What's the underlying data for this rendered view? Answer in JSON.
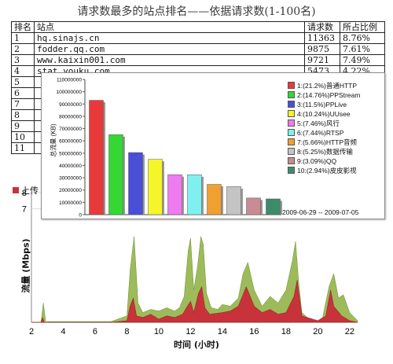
{
  "title": "请求数最多的站点排名——依据请求数(1-100名)",
  "table": {
    "headers": [
      "排名",
      "站点",
      "请求数",
      "所占比例"
    ],
    "rows": [
      [
        "1",
        "hq.sinajs.cn",
        "11363",
        "8.76%"
      ],
      [
        "2",
        "fodder.qq.com",
        "9875",
        "7.61%"
      ],
      [
        "3",
        "www.kaixin001.com",
        "9721",
        "7.49%"
      ],
      [
        "4",
        "stat.youku.com",
        "5473",
        "4.22%"
      ],
      [
        "5",
        "",
        "",
        ""
      ],
      [
        "6",
        "",
        "",
        ""
      ],
      [
        "7",
        "",
        "",
        ""
      ],
      [
        "8",
        "",
        "",
        ""
      ],
      [
        "9",
        "",
        "",
        ""
      ],
      [
        "10",
        "",
        "",
        ""
      ],
      [
        "11",
        "",
        "",
        ""
      ]
    ]
  },
  "popup": {
    "ylabel": "总流量 (KB)",
    "date_range": "2009-06-29 -- 2009-07-05"
  },
  "traffic": {
    "legend_upload": "上传",
    "ylabel": "流量 (Mbps)",
    "xlabel": "时间 (小时)",
    "colors": {
      "download": "#9dbb5a",
      "upload": "#c8323a"
    }
  },
  "chart_data": [
    {
      "type": "bar",
      "ylabel": "总流量 (KB)",
      "ylim": [
        0,
        110000000
      ],
      "yticks": [
        0,
        10000000,
        20000000,
        30000000,
        40000000,
        50000000,
        60000000,
        70000000,
        80000000,
        90000000,
        100000000,
        110000000
      ],
      "categories": [
        "1",
        "2",
        "3",
        "4",
        "5",
        "6",
        "7",
        "8",
        "9",
        "10"
      ],
      "values": [
        93000000,
        65000000,
        50500000,
        45000000,
        32500000,
        32400000,
        24600000,
        22800000,
        13500000,
        12800000
      ],
      "colors": [
        "#e83a3a",
        "#35d735",
        "#4a4fd8",
        "#f5f52a",
        "#f07af0",
        "#7ff0f0",
        "#f0a030",
        "#c4c4c4",
        "#c88c92",
        "#3c8c6c"
      ],
      "legend": [
        "1:(21.2%)普通HTTP",
        "2:(14.76%)PPStream",
        "3:(11.5%)PPLive",
        "4:(10.24%)UUsee",
        "5:(7.46%)风行",
        "6:(7.44%)RTSP",
        "7:(5.66%)HTTP音频",
        "8:(5.25%)数据传输",
        "9:(3.09%)QQ",
        "10:(2.94%)皮皮影视"
      ]
    },
    {
      "type": "area",
      "xlabel": "时间 (小时)",
      "ylabel": "流量 (Mbps)",
      "xlim": [
        2,
        22.5
      ],
      "ylim": [
        0,
        8
      ],
      "xticks": [
        2,
        4,
        6,
        8,
        10,
        12,
        14,
        16,
        18,
        20,
        22
      ],
      "yticks": [
        7,
        8
      ],
      "series": [
        {
          "name": "上传",
          "x": [
            2,
            2.6,
            2.7,
            2.8,
            3,
            4,
            5,
            6,
            7,
            8,
            8.2,
            8.4,
            8.6,
            9,
            9.5,
            10,
            10.5,
            11,
            11.5,
            11.8,
            12,
            12.2,
            12.5,
            12.7,
            12.9,
            13.2,
            14,
            14.5,
            15,
            15.5,
            16,
            16.5,
            17,
            17.5,
            18,
            18.5,
            18.7,
            19,
            20,
            20.5,
            20.8,
            21,
            21.5,
            22,
            22.5
          ],
          "values": [
            0,
            0,
            0.3,
            0,
            0,
            0,
            0,
            0,
            0,
            0.1,
            1.0,
            1.5,
            0.4,
            0.3,
            0.5,
            0.2,
            0.4,
            0.3,
            0.5,
            1.0,
            1.3,
            0.6,
            1.8,
            2.2,
            0.9,
            0.5,
            0.6,
            0.7,
            1.0,
            2.2,
            1.0,
            0.6,
            0.8,
            0.5,
            0.6,
            1.6,
            2.6,
            0.4,
            0.1,
            0.4,
            2.0,
            1.0,
            0.4,
            0.1,
            0
          ]
        }
      ]
    }
  ]
}
